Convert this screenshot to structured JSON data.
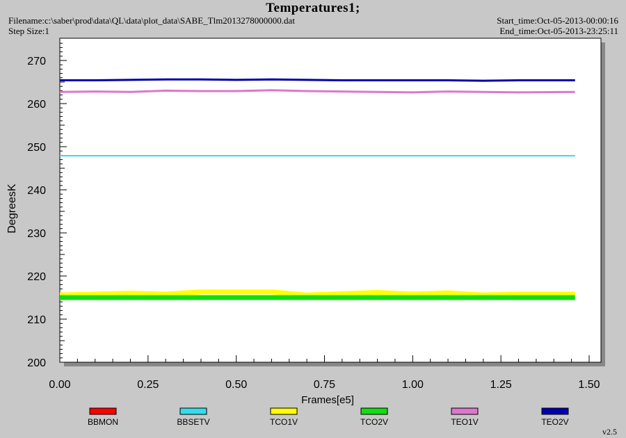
{
  "header": {
    "title": "Temperatures1;",
    "filename": "Filename:c:\\saber\\prod\\data\\QL\\data\\plot_data\\SABE_Tlm2013278000000.dat",
    "step_size": "Step Size:1",
    "start_time": "Start_time:Oct-05-2013-00:00:16",
    "end_time": "End_time:Oct-05-2013-23:25:11"
  },
  "version": "v2.5",
  "chart_data": {
    "type": "line",
    "title": "Temperatures1;",
    "xlabel": "Frames[e5]",
    "ylabel": "DegreesK",
    "xlim": [
      0.0,
      1.5
    ],
    "ylim": [
      200,
      275
    ],
    "x_ticks": [
      "0.00",
      "0.25",
      "0.50",
      "0.75",
      "1.00",
      "1.25",
      "1.50"
    ],
    "y_ticks": [
      "200",
      "210",
      "220",
      "230",
      "240",
      "250",
      "260",
      "270"
    ],
    "legend_placement": "bottom",
    "series": [
      {
        "name": "BBMON",
        "color": "#ff0000",
        "points": []
      },
      {
        "name": "BBSETV",
        "color": "#33ddee",
        "points": [
          [
            0.0,
            247.9
          ],
          [
            0.25,
            247.9
          ],
          [
            0.5,
            247.9
          ],
          [
            0.75,
            247.9
          ],
          [
            1.0,
            247.9
          ],
          [
            1.25,
            247.9
          ],
          [
            1.46,
            247.9
          ]
        ]
      },
      {
        "name": "TCO1V",
        "color": "#ffff00",
        "points": [
          [
            0.0,
            215.6
          ],
          [
            0.1,
            215.8
          ],
          [
            0.2,
            216.0
          ],
          [
            0.3,
            215.8
          ],
          [
            0.4,
            216.3
          ],
          [
            0.5,
            216.3
          ],
          [
            0.6,
            216.3
          ],
          [
            0.7,
            215.6
          ],
          [
            0.8,
            215.9
          ],
          [
            0.9,
            216.2
          ],
          [
            1.0,
            215.8
          ],
          [
            1.1,
            216.1
          ],
          [
            1.2,
            215.6
          ],
          [
            1.3,
            215.8
          ],
          [
            1.46,
            215.8
          ]
        ]
      },
      {
        "name": "TCO2V",
        "color": "#11dd11",
        "points": [
          [
            0.0,
            215.0
          ],
          [
            0.1,
            215.0
          ],
          [
            0.2,
            215.0
          ],
          [
            0.3,
            215.0
          ],
          [
            0.4,
            215.0
          ],
          [
            0.5,
            215.0
          ],
          [
            0.6,
            215.0
          ],
          [
            0.7,
            215.0
          ],
          [
            0.8,
            215.0
          ],
          [
            0.9,
            215.0
          ],
          [
            1.0,
            215.0
          ],
          [
            1.1,
            215.0
          ],
          [
            1.2,
            215.0
          ],
          [
            1.3,
            215.0
          ],
          [
            1.46,
            215.0
          ]
        ]
      },
      {
        "name": "TEO1V",
        "color": "#dd77cc",
        "points": [
          [
            0.0,
            262.7
          ],
          [
            0.1,
            262.8
          ],
          [
            0.2,
            262.7
          ],
          [
            0.3,
            263.0
          ],
          [
            0.4,
            262.9
          ],
          [
            0.5,
            262.9
          ],
          [
            0.6,
            263.1
          ],
          [
            0.7,
            262.9
          ],
          [
            0.8,
            262.8
          ],
          [
            0.9,
            262.7
          ],
          [
            1.0,
            262.6
          ],
          [
            1.1,
            262.8
          ],
          [
            1.2,
            262.7
          ],
          [
            1.3,
            262.6
          ],
          [
            1.46,
            262.7
          ]
        ]
      },
      {
        "name": "TEO2V",
        "color": "#0000aa",
        "points": [
          [
            0.0,
            265.4
          ],
          [
            0.1,
            265.4
          ],
          [
            0.2,
            265.5
          ],
          [
            0.3,
            265.6
          ],
          [
            0.4,
            265.6
          ],
          [
            0.5,
            265.5
          ],
          [
            0.6,
            265.6
          ],
          [
            0.7,
            265.5
          ],
          [
            0.8,
            265.4
          ],
          [
            0.9,
            265.4
          ],
          [
            1.0,
            265.4
          ],
          [
            1.1,
            265.4
          ],
          [
            1.2,
            265.3
          ],
          [
            1.3,
            265.4
          ],
          [
            1.46,
            265.4
          ]
        ]
      }
    ]
  }
}
